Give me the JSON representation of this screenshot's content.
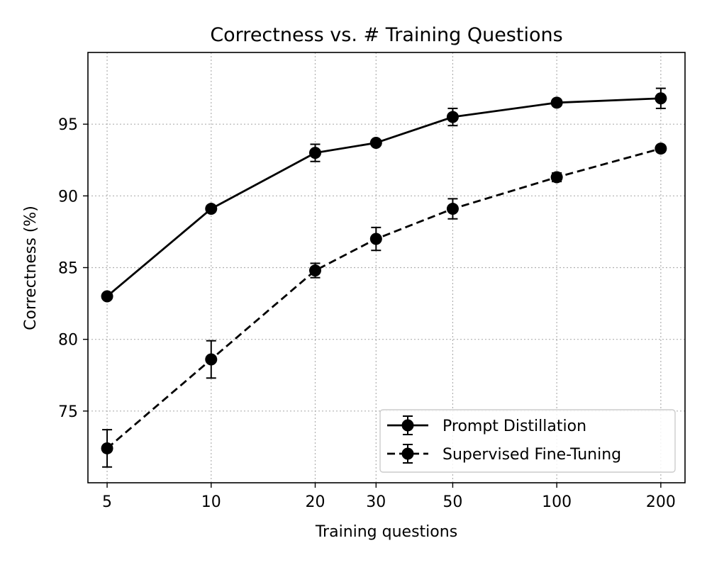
{
  "chart_data": {
    "type": "line",
    "title": "Correctness vs. # Training Questions",
    "xlabel": "Training questions",
    "ylabel": "Correctness (%)",
    "xscale": "log",
    "x": [
      5,
      10,
      20,
      30,
      50,
      100,
      200
    ],
    "x_tick_labels": [
      "5",
      "10",
      "20",
      "30",
      "50",
      "100",
      "200"
    ],
    "y_ticks": [
      75,
      80,
      85,
      90,
      95
    ],
    "y_tick_labels": [
      "75",
      "80",
      "85",
      "90",
      "95"
    ],
    "xlim": [
      4.4,
      235
    ],
    "ylim": [
      70,
      100
    ],
    "grid": true,
    "legend_position": "lower-right",
    "color": "#000000",
    "series": [
      {
        "name": "Prompt Distillation",
        "linestyle": "solid",
        "values": [
          83.0,
          89.1,
          93.0,
          93.7,
          95.5,
          96.5,
          96.8
        ],
        "errors": [
          0.1,
          0.2,
          0.6,
          0.1,
          0.6,
          0.2,
          0.7
        ]
      },
      {
        "name": "Supervised Fine-Tuning",
        "linestyle": "dashed",
        "values": [
          72.4,
          78.6,
          84.8,
          87.0,
          89.1,
          91.3,
          93.3
        ],
        "errors": [
          1.3,
          1.3,
          0.5,
          0.8,
          0.7,
          0.3,
          0.1
        ]
      }
    ]
  }
}
